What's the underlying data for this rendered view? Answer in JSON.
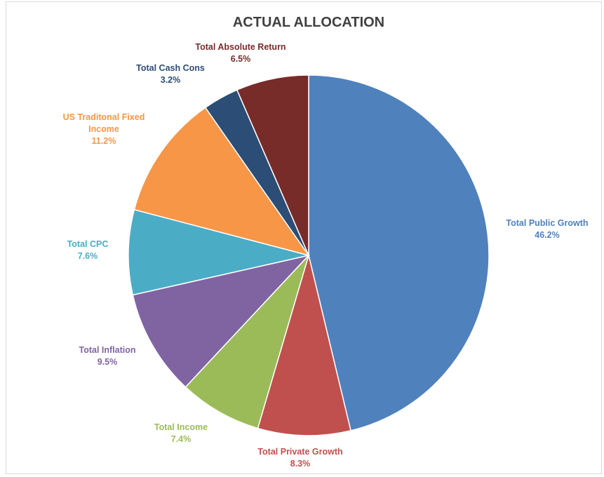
{
  "chart_data": {
    "type": "pie",
    "title": "ACTUAL ALLOCATION",
    "slices": [
      {
        "name": "Total Public Growth",
        "value": 46.2,
        "label": "46.2%",
        "color": "#4f81bd"
      },
      {
        "name": "Total Private Growth",
        "value": 8.3,
        "label": "8.3%",
        "color": "#c0504d"
      },
      {
        "name": "Total Income",
        "value": 7.4,
        "label": "7.4%",
        "color": "#9bbb59"
      },
      {
        "name": "Total Inflation",
        "value": 9.5,
        "label": "9.5%",
        "color": "#8064a2"
      },
      {
        "name": "Total CPC",
        "value": 7.6,
        "label": "7.6%",
        "color": "#4bacc6"
      },
      {
        "name": "US Traditonal Fixed Income",
        "value": 11.2,
        "label": "11.2%",
        "color": "#f79646",
        "name_lines": [
          "US Traditonal Fixed",
          "Income"
        ]
      },
      {
        "name": "Total Cash Cons",
        "value": 3.2,
        "label": "3.2%",
        "color": "#2c4d75"
      },
      {
        "name": "Total Absolute Return",
        "value": 6.5,
        "label": "6.5%",
        "color": "#772c2a"
      }
    ],
    "legend": "none",
    "start_angle": "12 o'clock, clockwise"
  }
}
